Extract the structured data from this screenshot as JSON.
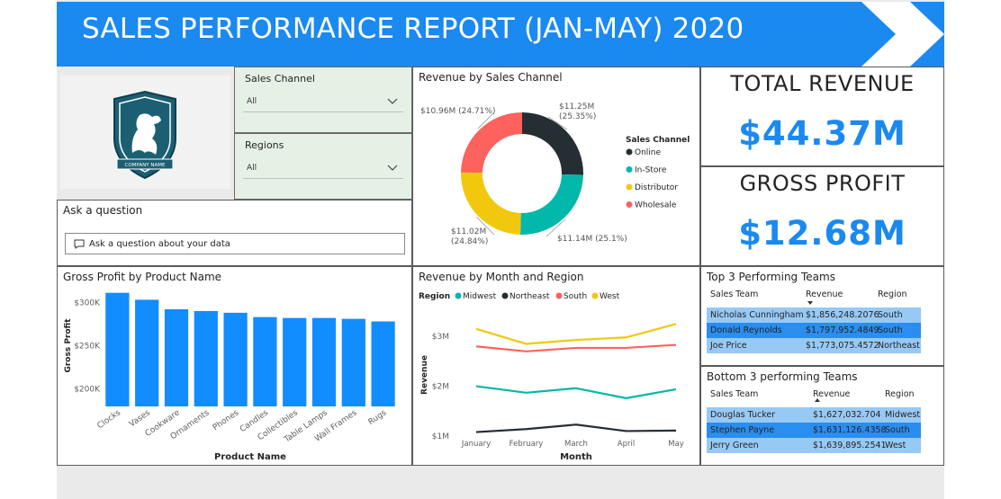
{
  "report": {
    "title": "SALES PERFORMANCE REPORT (JAN-MAY) 2020",
    "logo_text": "COMPANY NAME"
  },
  "slicers": {
    "sales_channel": {
      "label": "Sales Channel",
      "value": "All"
    },
    "regions": {
      "label": "Regions",
      "value": "All"
    }
  },
  "qna": {
    "title": "Ask a question",
    "placeholder": "Ask a question about your data"
  },
  "kpis": {
    "total_revenue": {
      "label": "TOTAL REVENUE",
      "value": "$44.37M"
    },
    "gross_profit": {
      "label": "GROSS PROFIT",
      "value": "$12.68M"
    }
  },
  "colors": {
    "accent": "#1a89f0",
    "online": "#252e33",
    "instore": "#01b8aa",
    "distributor": "#f2c80f",
    "wholesale": "#fd625e",
    "bar": "#118dff"
  },
  "chart_data": [
    {
      "id": "donut",
      "type": "pie",
      "title": "Revenue by Sales Channel",
      "legend_title": "Sales Channel",
      "legend_position": "right",
      "slices": [
        {
          "name": "Online",
          "value": 11.25,
          "label": "$11.25M",
          "pct_label": "(25.35%)",
          "color": "#252e33"
        },
        {
          "name": "In-Store",
          "value": 11.14,
          "label": "$11.14M (25.1%)",
          "pct_label": "",
          "color": "#01b8aa"
        },
        {
          "name": "Distributor",
          "value": 11.02,
          "label": "$11.02M",
          "pct_label": "(24.84%)",
          "color": "#f2c80f"
        },
        {
          "name": "Wholesale",
          "value": 10.96,
          "label": "$10.96M (24.71%)",
          "pct_label": "",
          "color": "#fd625e"
        }
      ]
    },
    {
      "id": "bars",
      "type": "bar",
      "title": "Gross Profit by Product Name",
      "xlabel": "Product Name",
      "ylabel": "Gross Profit",
      "categories": [
        "Clocks",
        "Vases",
        "Cookware",
        "Ornaments",
        "Phones",
        "Candles",
        "Collectibles",
        "Table Lamps",
        "Wall Frames",
        "Rugs"
      ],
      "values": [
        311000,
        303000,
        292000,
        290000,
        288000,
        283000,
        282000,
        282000,
        281000,
        278000
      ],
      "ylim": [
        180000,
        320000
      ],
      "yticks": [
        200000,
        250000,
        300000
      ],
      "ytick_labels": [
        "$200K",
        "$250K",
        "$300K"
      ],
      "grid": false
    },
    {
      "id": "lines",
      "type": "line",
      "title": "Revenue by Month and Region",
      "xlabel": "Month",
      "ylabel": "Revenue",
      "legend_title": "Region",
      "legend_position": "top-left",
      "categories": [
        "January",
        "February",
        "March",
        "April",
        "May"
      ],
      "ylim": [
        1000000,
        3400000
      ],
      "yticks": [
        1000000,
        2000000,
        3000000
      ],
      "ytick_labels": [
        "$1M",
        "$2M",
        "$3M"
      ],
      "series": [
        {
          "name": "Midwest",
          "color": "#01b8aa",
          "values": [
            2000000,
            1870000,
            1960000,
            1760000,
            1940000
          ]
        },
        {
          "name": "Northeast",
          "color": "#252e33",
          "values": [
            1080000,
            1140000,
            1230000,
            1100000,
            1110000
          ]
        },
        {
          "name": "South",
          "color": "#fd625e",
          "values": [
            2800000,
            2700000,
            2770000,
            2770000,
            2830000
          ]
        },
        {
          "name": "West",
          "color": "#f2c80f",
          "values": [
            3150000,
            2850000,
            2930000,
            2980000,
            3250000
          ]
        }
      ]
    }
  ],
  "top_teams": {
    "title": "Top 3 Performing Teams",
    "headers": [
      "Sales Team",
      "Revenue",
      "Region"
    ],
    "rows": [
      [
        "Nicholas Cunningham",
        "$1,856,248.2076",
        "South"
      ],
      [
        "Donald Reynolds",
        "$1,797,952.4849",
        "South"
      ],
      [
        "Joe Price",
        "$1,773,075.4572",
        "Northeast"
      ]
    ]
  },
  "bottom_teams": {
    "title": "Bottom 3 performing Teams",
    "headers": [
      "Sales Team",
      "Revenue",
      "Region"
    ],
    "rows": [
      [
        "Douglas Tucker",
        "$1,627,032.704",
        "Midwest"
      ],
      [
        "Stephen Payne",
        "$1,631,126.4358",
        "South"
      ],
      [
        "Jerry Green",
        "$1,639,895.2541",
        "West"
      ]
    ]
  }
}
